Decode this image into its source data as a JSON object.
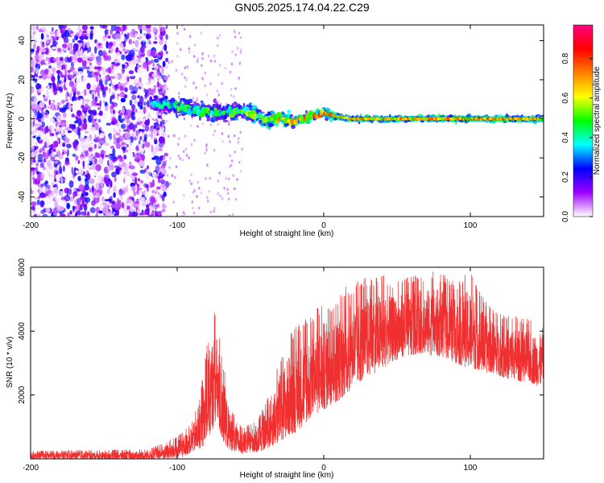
{
  "title": "GN05.2025.174.04.22.C29",
  "colors": {
    "snr_line": "#f03030",
    "axis": "#000000",
    "colorbar_stops": [
      "#ffffff",
      "#a000ff",
      "#0000ff",
      "#00ffff",
      "#00ff00",
      "#ffff00",
      "#ff8000",
      "#ff0000",
      "#ff0080"
    ]
  },
  "chart_data": [
    {
      "type": "heatmap",
      "name": "spectrogram",
      "xlabel": "Height of straight line (km)",
      "ylabel": "Frequency (Hz)",
      "xlim": [
        -200,
        150
      ],
      "ylim": [
        -50,
        48
      ],
      "xticks": [
        -200,
        -100,
        0,
        100
      ],
      "yticks": [
        -40,
        -20,
        0,
        20,
        40
      ],
      "colorbar": {
        "label": "Normalized spectral amplitude",
        "range": [
          0,
          0.97
        ],
        "ticks": [
          "0.0",
          "0.2",
          "0.4",
          "0.6",
          "0.8"
        ]
      },
      "ridge": {
        "x": [
          -200,
          -120,
          -110,
          -100,
          -90,
          -80,
          -70,
          -60,
          -50,
          -40,
          -30,
          -20,
          -10,
          0,
          10,
          20,
          50,
          100,
          150
        ],
        "frequency": [
          8,
          8,
          8,
          6,
          5,
          4,
          3,
          4,
          3,
          0,
          0,
          -1,
          1,
          3,
          1,
          0,
          0,
          0,
          0
        ],
        "amplitude": [
          0.2,
          0.35,
          0.45,
          0.55,
          0.5,
          0.55,
          0.5,
          0.55,
          0.6,
          0.75,
          0.8,
          0.8,
          0.85,
          0.9,
          0.85,
          0.8,
          0.8,
          0.85,
          0.8
        ]
      },
      "noise_region": {
        "x_range": [
          -200,
          -107
        ],
        "amplitude": 0.2
      }
    },
    {
      "type": "line",
      "name": "snr",
      "xlabel": "Height of straight line (km)",
      "ylabel": "SNR (10 * v/v)",
      "xlim": [
        -200,
        150
      ],
      "ylim": [
        0,
        6000
      ],
      "xticks": [
        -200,
        -100,
        0,
        100
      ],
      "yticks": [
        2000,
        4000,
        6000
      ],
      "envelope": {
        "x": [
          -200,
          -120,
          -110,
          -100,
          -95,
          -90,
          -85,
          -80,
          -77,
          -75,
          -73,
          -70,
          -65,
          -60,
          -55,
          -50,
          -45,
          -40,
          -35,
          -30,
          -25,
          -20,
          -15,
          -10,
          -5,
          0,
          5,
          10,
          15,
          20,
          25,
          30,
          35,
          40,
          45,
          50,
          55,
          60,
          65,
          70,
          75,
          80,
          85,
          90,
          95,
          100,
          105,
          110,
          115,
          120,
          125,
          130,
          135,
          140,
          145,
          150
        ],
        "y_min": [
          0,
          0,
          0,
          0,
          100,
          200,
          300,
          500,
          800,
          1000,
          1200,
          600,
          300,
          200,
          150,
          200,
          200,
          300,
          400,
          500,
          700,
          800,
          1000,
          1200,
          1400,
          1500,
          1700,
          1800,
          2000,
          2200,
          2400,
          2600,
          2700,
          2800,
          3000,
          3100,
          3200,
          3200,
          3300,
          3300,
          3200,
          3200,
          3100,
          3000,
          2900,
          2800,
          2800,
          2700,
          2700,
          2600,
          2500,
          2500,
          2400,
          2400,
          2300,
          2300
        ],
        "y_max": [
          250,
          300,
          500,
          700,
          900,
          1200,
          1800,
          3500,
          4400,
          4700,
          4500,
          3500,
          2000,
          1200,
          1000,
          1100,
          1300,
          1700,
          2500,
          3200,
          3800,
          4100,
          4300,
          4500,
          4700,
          5000,
          4900,
          5100,
          5400,
          5500,
          5600,
          5700,
          5700,
          5800,
          5600,
          5600,
          5700,
          5700,
          5800,
          5800,
          5900,
          5800,
          5700,
          5500,
          5700,
          6000,
          5400,
          5000,
          4700,
          4600,
          4500,
          4500,
          4400,
          4400,
          4300,
          4300
        ]
      }
    }
  ]
}
